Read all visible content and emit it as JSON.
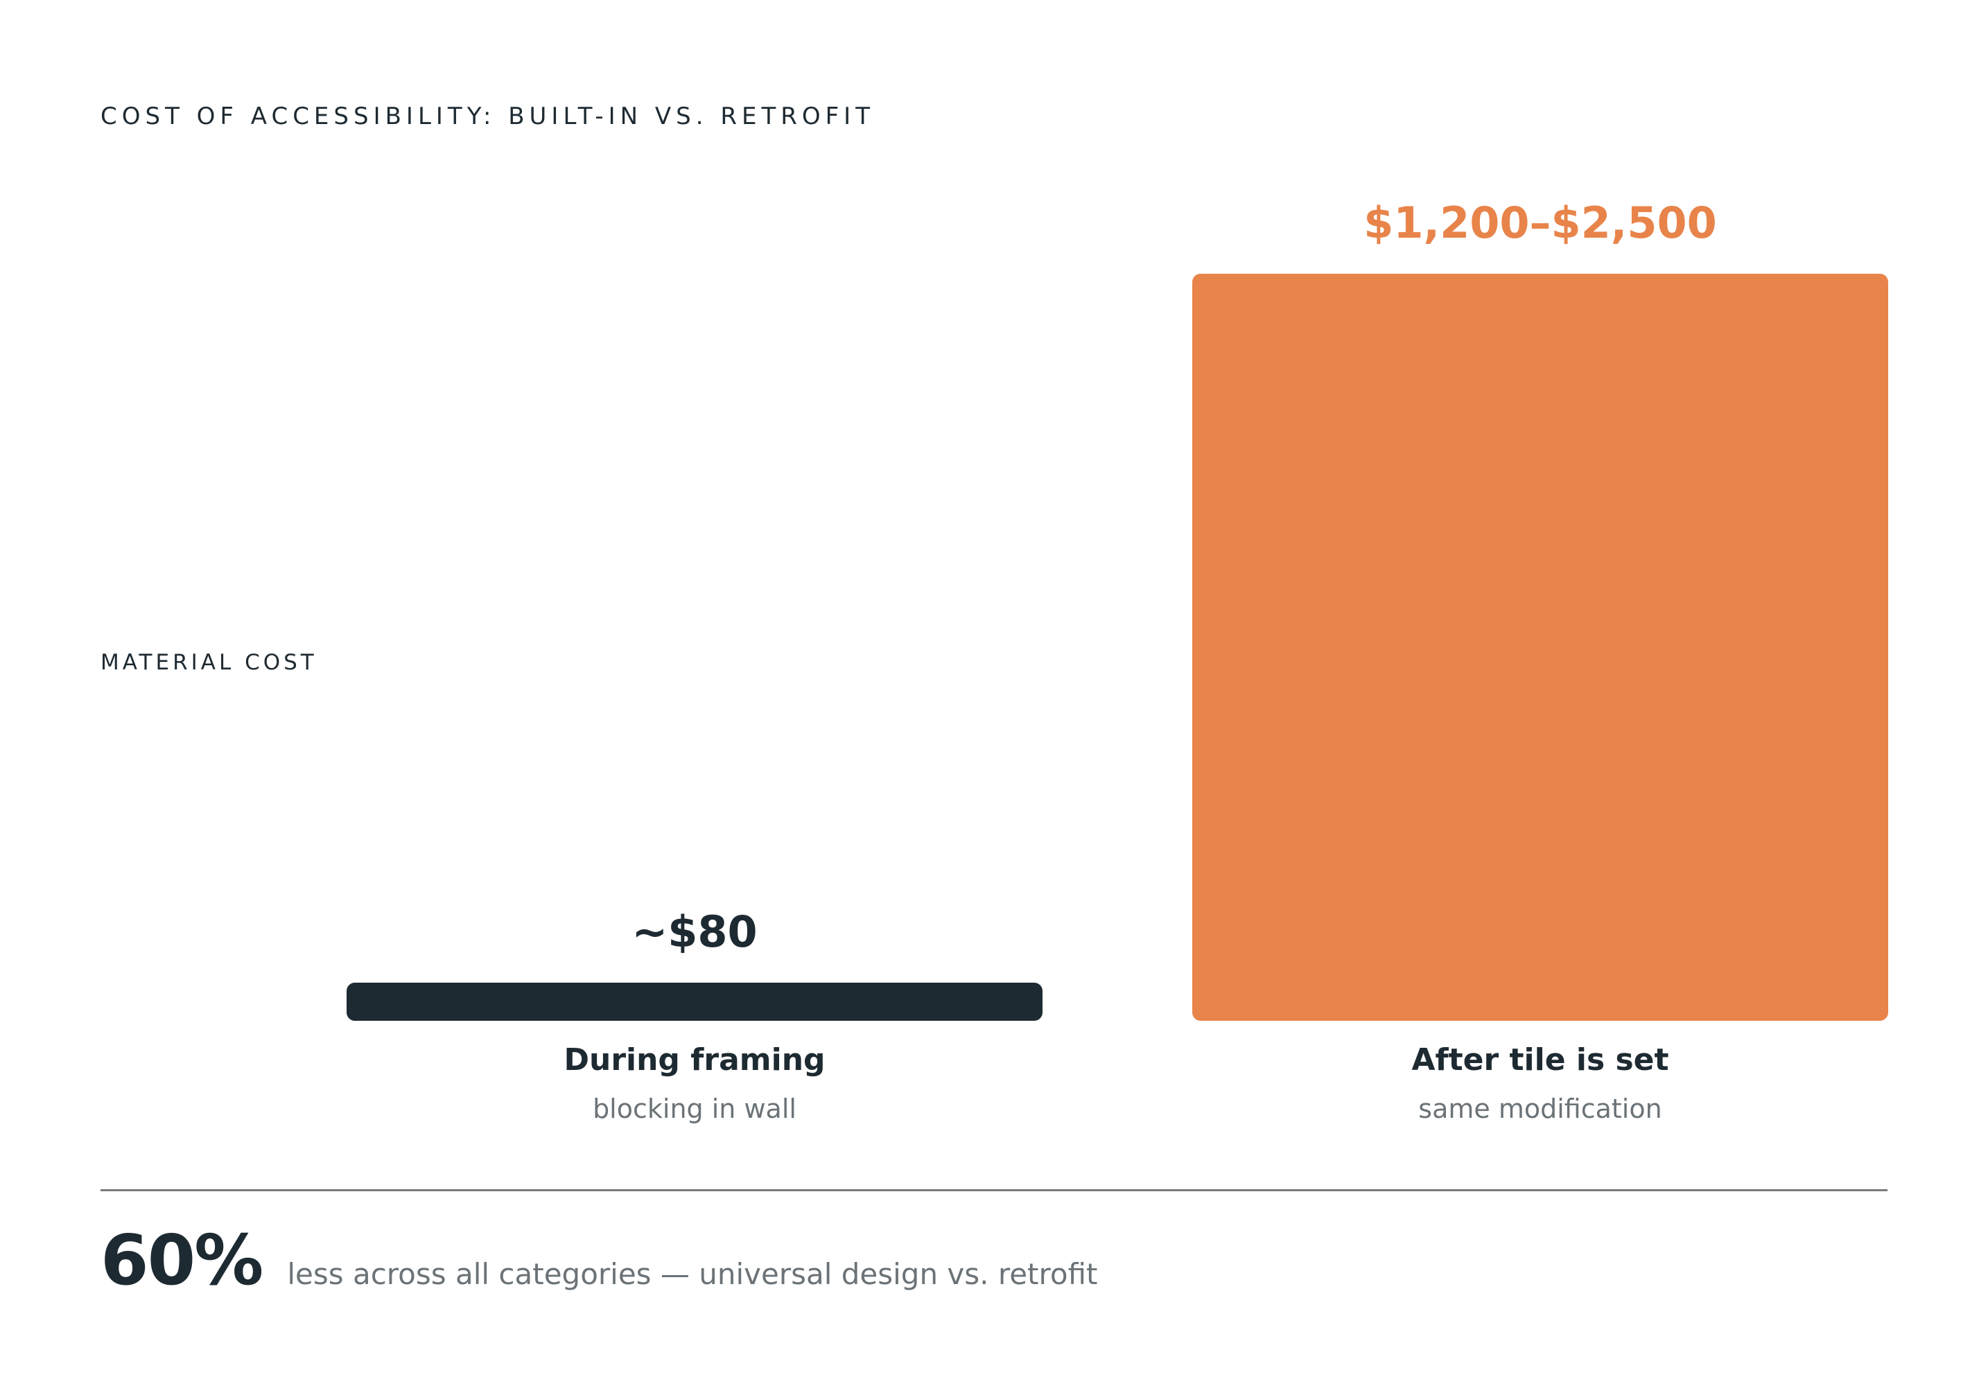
{
  "chart_data": {
    "type": "bar",
    "title": "COST OF ACCESSIBILITY: BUILT-IN VS. RETROFIT",
    "ylabel": "MATERIAL COST",
    "categories": [
      "During framing",
      "After tile is set"
    ],
    "subtitles": [
      "blocking in wall",
      "same modification"
    ],
    "value_labels": [
      "~$80",
      "$1,200–$2,500"
    ],
    "values": [
      80,
      1600
    ],
    "ylim": [
      0,
      1600
    ],
    "colors": [
      "#1e2a32",
      "#e8844a"
    ],
    "grid": false
  },
  "footer": {
    "stat": "60%",
    "text": "less across all categories — universal design vs. retrofit"
  }
}
